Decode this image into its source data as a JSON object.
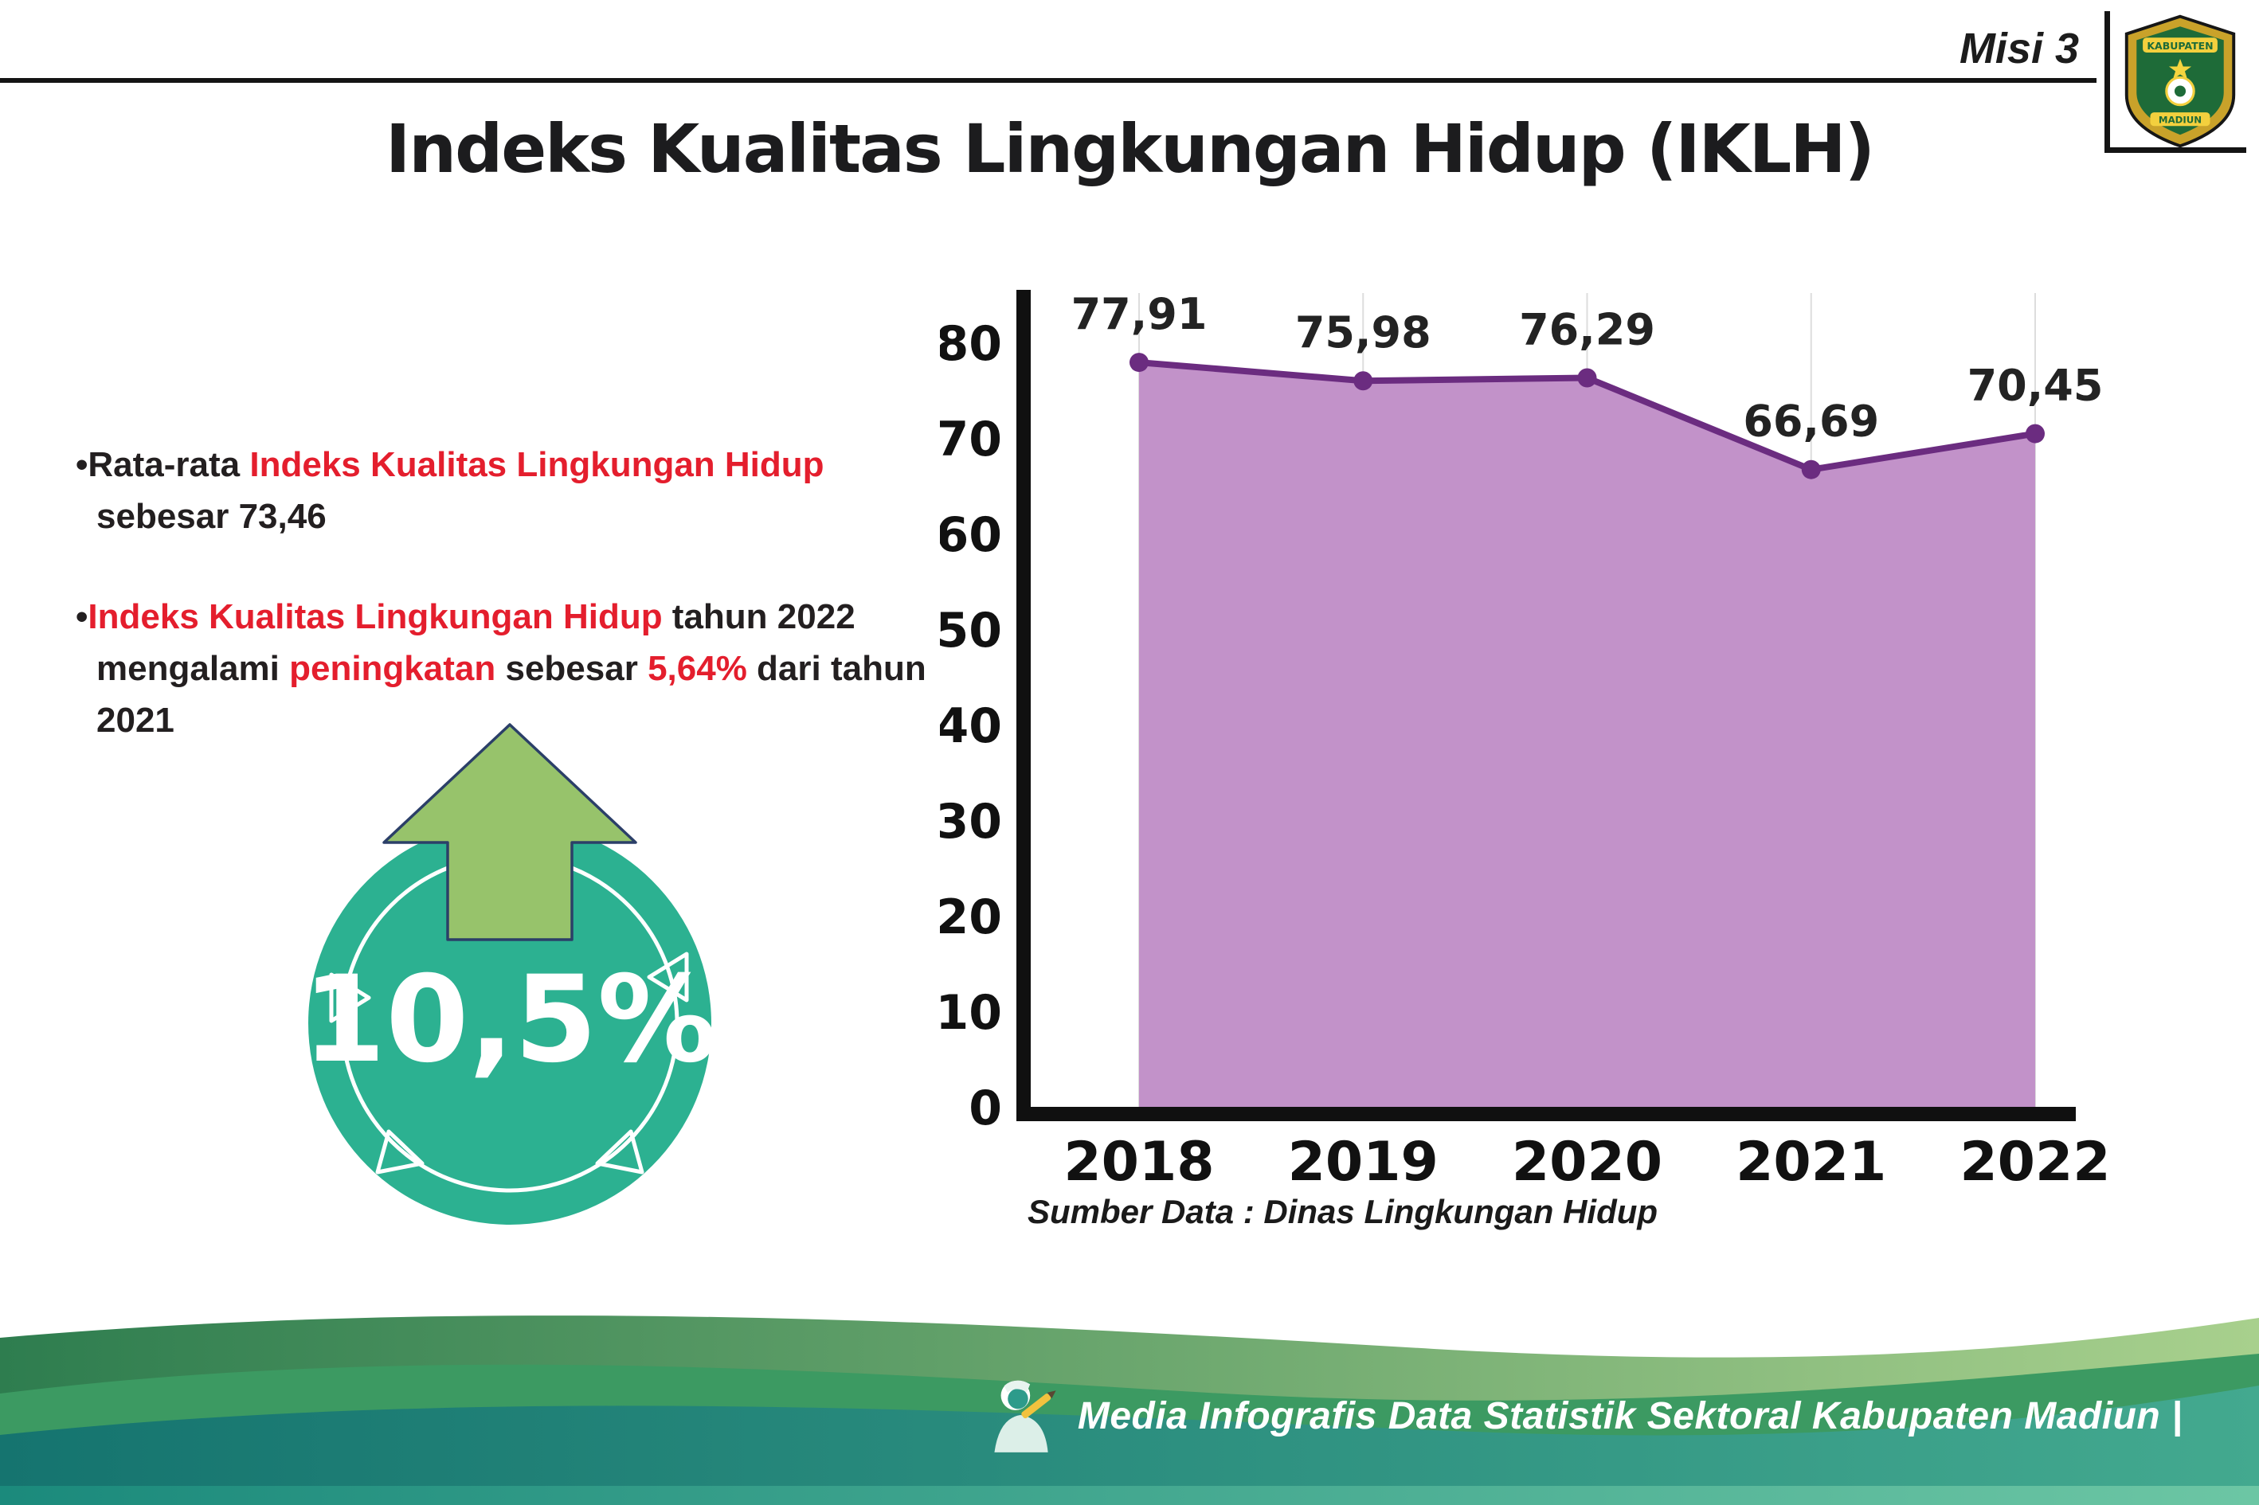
{
  "header": {
    "misi_label": "Misi 3",
    "logo": {
      "word_top": "KABUPATEN",
      "word_bottom": "MADIUN"
    }
  },
  "title": "Indeks Kualitas Lingkungan Hidup (IKLH)",
  "bullets": {
    "dot": "•",
    "item1": {
      "seg1": "Rata-rata ",
      "seg2": "Indeks Kualitas Lingkungan Hidup",
      "seg3": " sebesar 73,46"
    },
    "item2": {
      "seg1": "Indeks Kualitas Lingkungan Hidup",
      "seg2": " tahun 2022 mengalami ",
      "seg3": "peningkatan",
      "seg4": " sebesar ",
      "seg5": "5,64%",
      "seg6": " dari tahun 2021"
    }
  },
  "badge": {
    "value": "10,5%"
  },
  "chart_data": {
    "type": "area",
    "categories": [
      "2018",
      "2019",
      "2020",
      "2021",
      "2022"
    ],
    "values": [
      77.91,
      75.98,
      76.29,
      66.69,
      70.45
    ],
    "value_labels": [
      "77,91",
      "75,98",
      "76,29",
      "66,69",
      "70,45"
    ],
    "title": "",
    "xlabel": "",
    "ylabel": "",
    "ylim": [
      0,
      80
    ],
    "yticks": [
      0,
      10,
      20,
      30,
      40,
      50,
      60,
      70,
      80
    ],
    "line_color": "#6b2c80",
    "fill_color": "#c292c9",
    "grid": "vertical-light",
    "legend": "none"
  },
  "source": "Sumber Data : Dinas Lingkungan Hidup",
  "footer": {
    "text": "Media Infografis Data Statistik Sektoral Kabupaten Madiun |"
  },
  "colors": {
    "red_highlight": "#e41e2d",
    "badge_teal": "#2cb191",
    "arrow_green": "#97c36b",
    "footer_teal_dark": "#15746f",
    "footer_teal_light": "#43a98f",
    "footer_green": "#3c9a62"
  }
}
